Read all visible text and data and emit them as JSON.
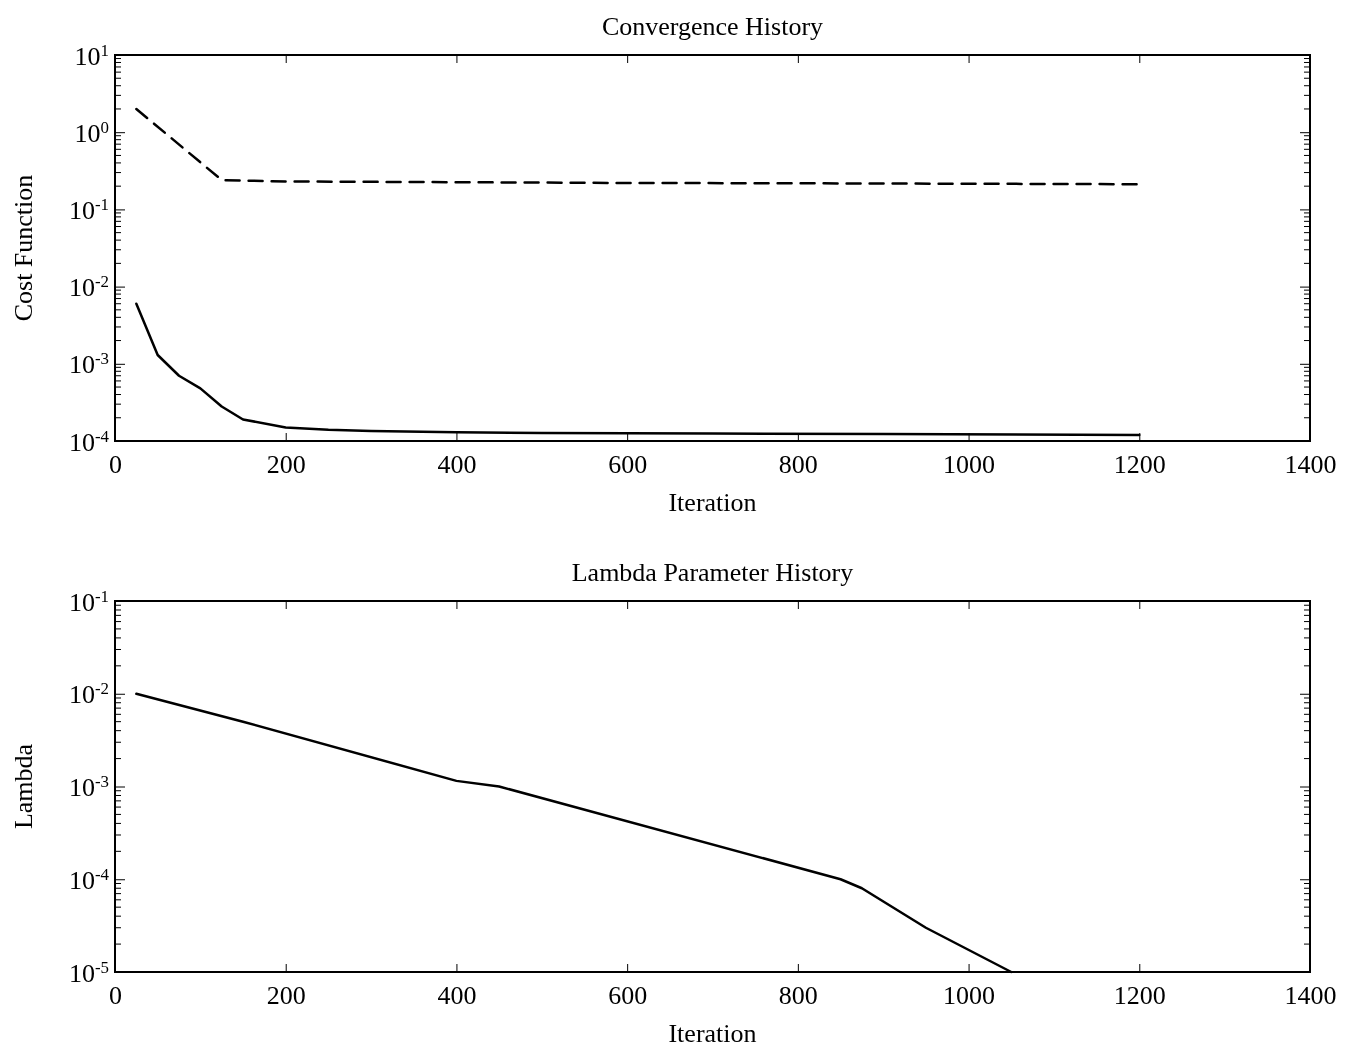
{
  "chart_data": [
    {
      "type": "line",
      "title": "Convergence History",
      "xlabel": "Iteration",
      "ylabel": "Cost Function",
      "log": "y",
      "grid": false,
      "xlim": [
        0,
        1400
      ],
      "xticks": [
        0,
        200,
        400,
        600,
        800,
        1000,
        1200,
        1400
      ],
      "ylim": [
        0.0001,
        10
      ],
      "yticks": [
        {
          "value": 0.0001,
          "label": "10$^{-4}$"
        },
        {
          "value": 0.001,
          "label": "10$^{-3}$"
        },
        {
          "value": 0.01,
          "label": "10$^{-2}$"
        },
        {
          "value": 0.1,
          "label": "10$^{-1}$"
        },
        {
          "value": 1,
          "label": "10$^{0}$"
        },
        {
          "value": 10,
          "label": "10$^{1}$"
        }
      ],
      "series": [
        {
          "color": "#000000",
          "line_style": "dashed",
          "x": [
            25,
            125,
            200,
            400,
            600,
            800,
            1000,
            1200
          ],
          "values": [
            2,
            0.24,
            0.23,
            0.225,
            0.22,
            0.218,
            0.215,
            0.212
          ]
        },
        {
          "color": "#000000",
          "line_style": "solid",
          "x": [
            25,
            50,
            75,
            100,
            125,
            150,
            200,
            250,
            300,
            400,
            500,
            700,
            900,
            1200
          ],
          "values": [
            0.006,
            0.0013,
            0.0007,
            0.00048,
            0.00028,
            0.00019,
            0.00015,
            0.00014,
            0.000135,
            0.00013,
            0.000127,
            0.000125,
            0.000123,
            0.00012
          ]
        }
      ]
    },
    {
      "type": "line",
      "title": "Lambda Parameter History",
      "xlabel": "Iteration",
      "ylabel": "Lambda",
      "log": "y",
      "grid": false,
      "xlim": [
        0,
        1400
      ],
      "xticks": [
        0,
        200,
        400,
        600,
        800,
        1000,
        1200,
        1400
      ],
      "ylim": [
        1e-05,
        0.1
      ],
      "yticks": [
        {
          "value": 1e-05,
          "label": "10$^{-5}$"
        },
        {
          "value": 0.0001,
          "label": "10$^{-4}$"
        },
        {
          "value": 0.001,
          "label": "10$^{-3}$"
        },
        {
          "value": 0.01,
          "label": "10$^{-2}$"
        },
        {
          "value": 0.1,
          "label": "10$^{-1}$"
        }
      ],
      "series": [
        {
          "color": "#000000",
          "line_style": "solid",
          "x": [
            25,
            150,
            400,
            450,
            850,
            875,
            950,
            1050
          ],
          "values": [
            0.01,
            0.005,
            0.00115,
            0.001,
            0.0001,
            8e-05,
            3e-05,
            1e-05
          ]
        }
      ]
    }
  ]
}
